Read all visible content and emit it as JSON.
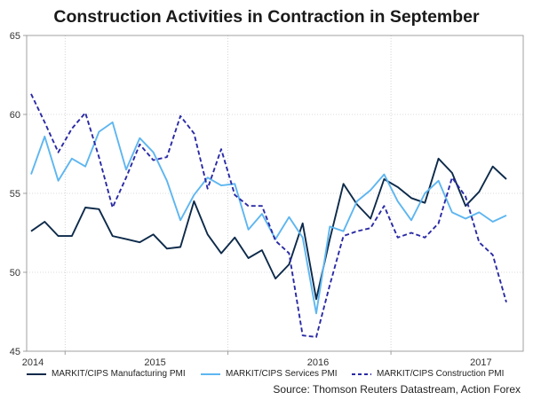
{
  "chart_data": {
    "type": "line",
    "title": "Construction Activities in Contraction in September",
    "xlabel": "",
    "ylabel": "",
    "ylim": [
      45,
      65
    ],
    "yticks": [
      45,
      50,
      55,
      60,
      65
    ],
    "x_tick_labels": [
      "2014",
      "2015",
      "2016",
      "2017"
    ],
    "x_tick_index": [
      0,
      9,
      21,
      33
    ],
    "x_gridline_index": [
      2.5,
      14.5,
      26.5
    ],
    "grid": true,
    "series": [
      {
        "name": "MARKIT/CIPS Manufacturing PMI",
        "color": "#0d2a4a",
        "dash": "solid",
        "values": [
          52.6,
          53.2,
          52.3,
          52.3,
          54.1,
          54.0,
          52.3,
          52.1,
          51.9,
          52.4,
          51.5,
          51.6,
          54.5,
          52.4,
          51.2,
          52.2,
          50.9,
          51.4,
          49.6,
          50.5,
          53.1,
          48.3,
          52.1,
          55.6,
          54.3,
          53.4,
          55.9,
          55.4,
          54.7,
          54.4,
          57.2,
          56.3,
          54.2,
          55.1,
          56.7,
          55.9
        ]
      },
      {
        "name": "MARKIT/CIPS Services PMI",
        "color": "#5eb6f0",
        "dash": "solid",
        "values": [
          56.2,
          58.6,
          55.8,
          57.2,
          56.7,
          58.9,
          59.5,
          56.5,
          58.5,
          57.6,
          55.8,
          53.3,
          54.9,
          56.0,
          55.5,
          55.6,
          52.7,
          53.7,
          52.1,
          53.5,
          52.2,
          47.4,
          52.9,
          52.6,
          54.5,
          55.2,
          56.2,
          54.5,
          53.3,
          55.0,
          55.8,
          53.8,
          53.4,
          53.8,
          53.2,
          53.6
        ]
      },
      {
        "name": "MARKIT/CIPS Construction PMI",
        "color": "#2a2aa6",
        "dash": "dashed",
        "values": [
          61.3,
          59.5,
          57.6,
          59.1,
          60.1,
          57.3,
          54.1,
          56.0,
          58.1,
          57.1,
          57.3,
          59.9,
          58.8,
          55.3,
          57.8,
          54.9,
          54.2,
          54.2,
          52.0,
          51.2,
          46.0,
          45.9,
          49.2,
          52.3,
          52.6,
          52.8,
          54.2,
          52.2,
          52.5,
          52.2,
          53.1,
          56.0,
          54.8,
          51.9,
          51.1,
          48.1
        ]
      }
    ]
  },
  "source_note": "Source: Thomson Reuters Datastream, Action Forex"
}
